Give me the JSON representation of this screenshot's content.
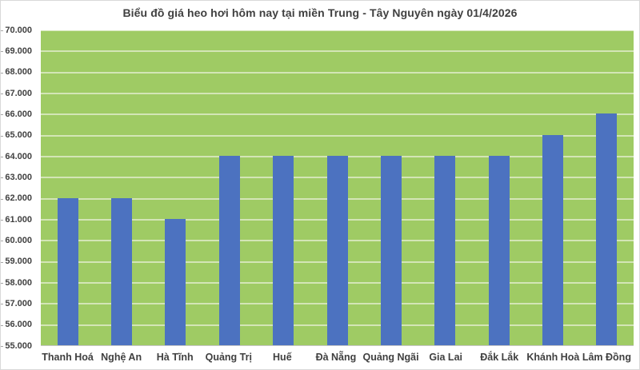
{
  "page": {
    "background_color": "#ffffff",
    "border_color": "#d9d9d9"
  },
  "chart_data": {
    "type": "bar",
    "title": "Biểu đồ giá heo hơi hôm nay tại miền Trung - Tây Nguyên ngày 01/4/2026",
    "categories": [
      "Thanh Hoá",
      "Nghệ An",
      "Hà Tĩnh",
      "Quảng Trị",
      "Huế",
      "Đà Nẵng",
      "Quảng Ngãi",
      "Gia Lai",
      "Đắk Lắk",
      "Khánh Hoà",
      "Lâm Đồng"
    ],
    "values": [
      62000,
      62000,
      61000,
      64000,
      64000,
      64000,
      64000,
      64000,
      64000,
      65000,
      66000
    ],
    "xlabel": "",
    "ylabel": "",
    "ylim": [
      55000,
      70000
    ],
    "ytick_step": 1000,
    "ytick_labels_top_to_bottom": [
      "70.000",
      "69.000",
      "68.000",
      "67.000",
      "66.000",
      "65.000",
      "64.000",
      "63.000",
      "62.000",
      "61.000",
      "60.000",
      "59.000",
      "58.000",
      "57.000",
      "56.000",
      "55.000"
    ],
    "grid": true,
    "legend": false,
    "colors": {
      "bar": "#4C72C0",
      "plot_background": "#9FCB64",
      "gridline": "#D3E5B6",
      "axis_text": "#404040",
      "title_text": "#404040",
      "axis_line": "#C6C6C6",
      "tick_mark": "#A6A6A6"
    }
  }
}
